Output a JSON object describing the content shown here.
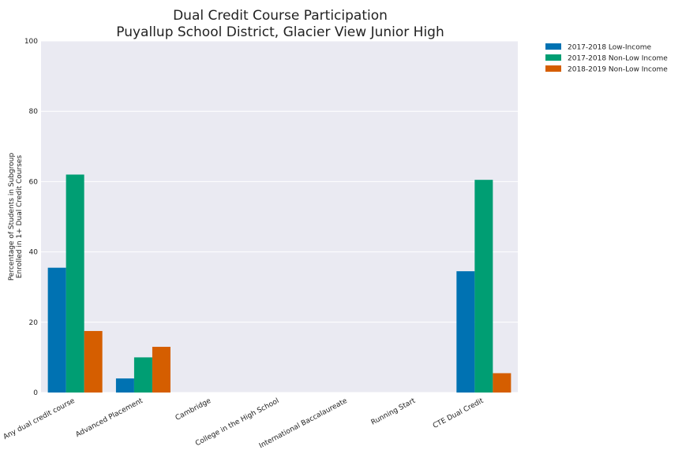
{
  "chart_data": {
    "type": "bar",
    "title": "Dual Credit Course Participation",
    "subtitle": "Puyallup School District, Glacier View Junior High",
    "xlabel": "",
    "ylabel_line1": "Percentage of Students in Subgroup",
    "ylabel_line2": "Enrolled in 1+ Dual Credit Courses",
    "ylim": [
      0,
      100
    ],
    "yticks": [
      0,
      20,
      40,
      60,
      80,
      100
    ],
    "grid": true,
    "legend_position": "outside-top-right",
    "categories": [
      "Any dual credit course",
      "Advanced Placement",
      "Cambridge",
      "College in the High School",
      "International Baccalaureate",
      "Running Start",
      "CTE Dual Credit"
    ],
    "series": [
      {
        "name": "2017-2018 Low-Income",
        "color": "#0072b2",
        "values": [
          35.5,
          4,
          0,
          0,
          0,
          0,
          34.5
        ]
      },
      {
        "name": "2017-2018 Non-Low Income",
        "color": "#009e73",
        "values": [
          62,
          10,
          0,
          0,
          0,
          0,
          60.5
        ]
      },
      {
        "name": "2018-2019 Non-Low Income",
        "color": "#d55e00",
        "values": [
          17.5,
          13,
          0,
          0,
          0,
          0,
          5.5
        ]
      }
    ],
    "background_color": "#eaeaf2",
    "grid_color": "#ffffff"
  }
}
